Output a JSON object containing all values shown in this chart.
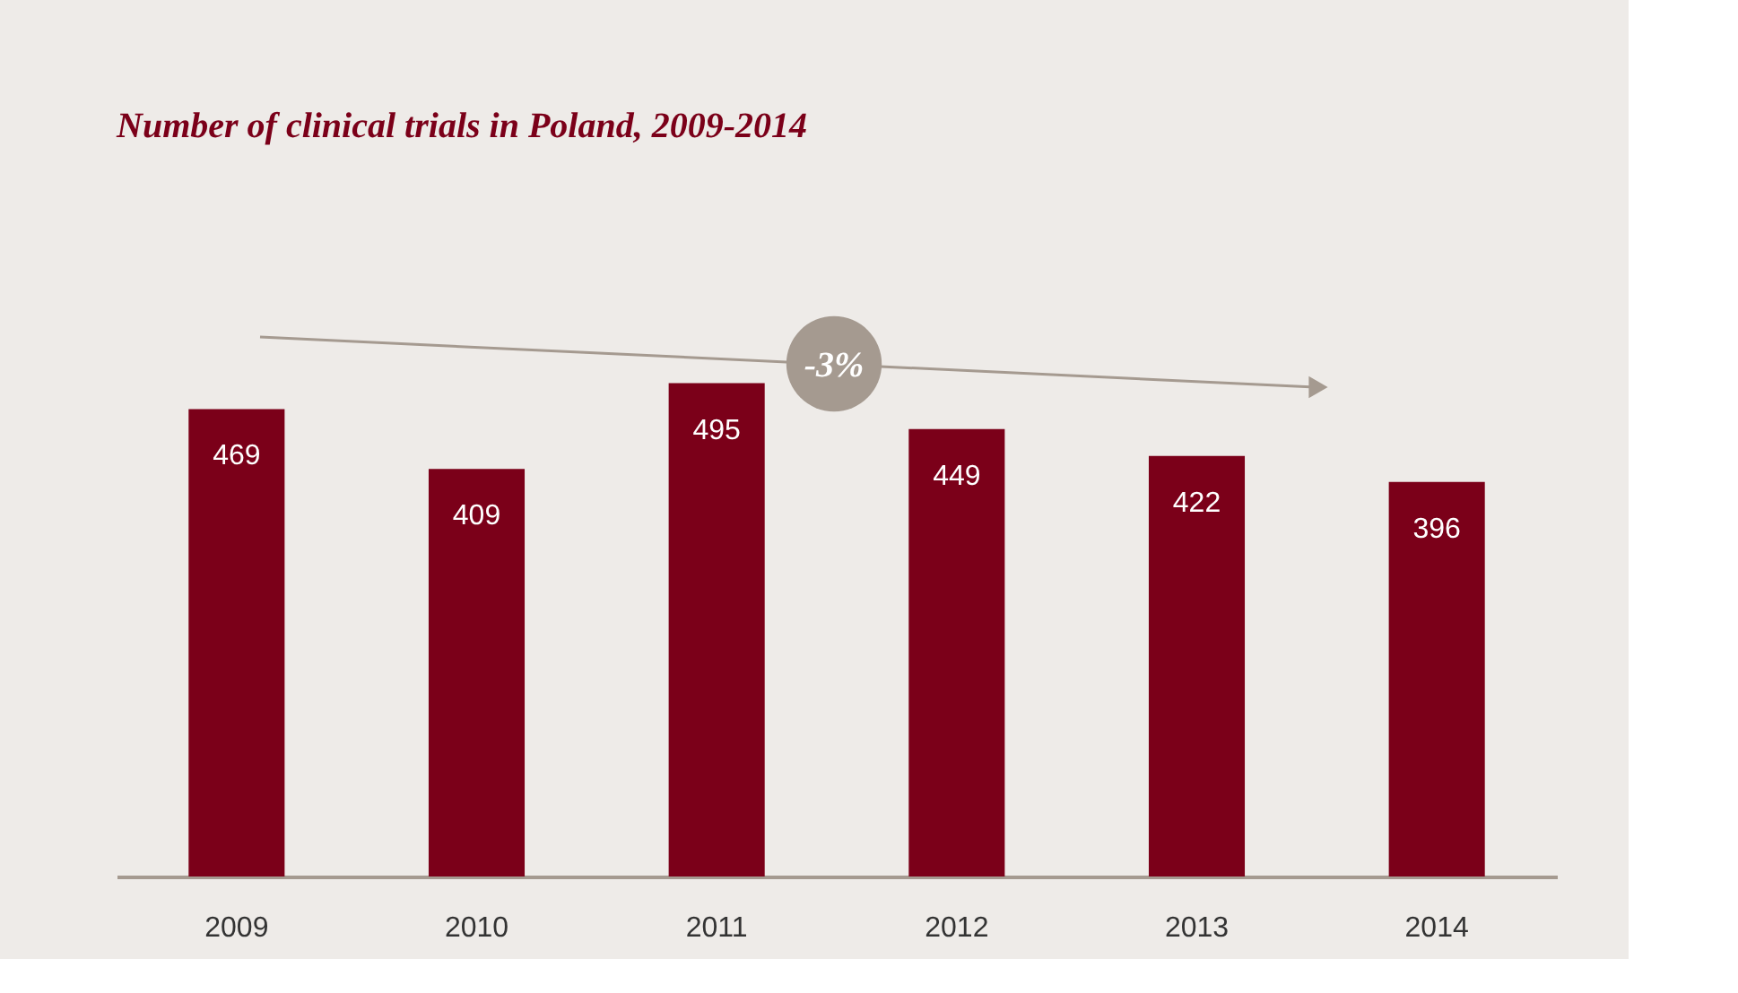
{
  "chart_data": {
    "type": "bar",
    "title": "Number of clinical trials in Poland, 2009-2014",
    "categories": [
      "2009",
      "2010",
      "2011",
      "2012",
      "2013",
      "2014"
    ],
    "values": [
      469,
      409,
      495,
      449,
      422,
      396
    ],
    "color": "#7b0019",
    "data_labels": true,
    "grid": false,
    "annotations": [
      "-3%"
    ]
  }
}
